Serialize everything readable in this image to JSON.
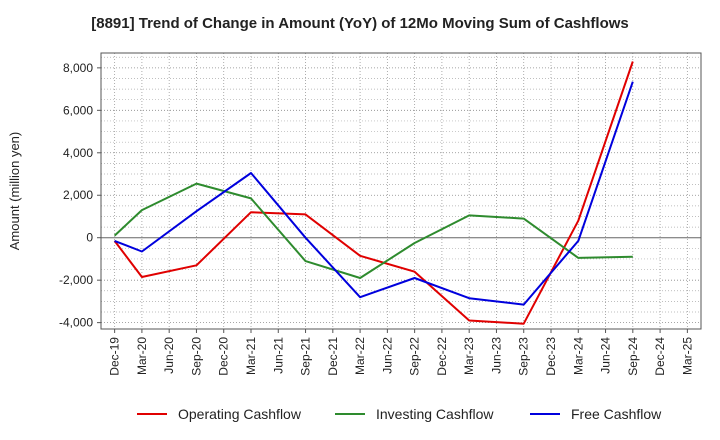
{
  "chart_data": {
    "type": "line",
    "title": "[8891]  Trend of Change in Amount (YoY) of 12Mo Moving Sum of Cashflows",
    "xlabel": "",
    "ylabel": "Amount (million yen)",
    "ylim": [
      -4300,
      8700
    ],
    "yticks": [
      -4000,
      -2000,
      0,
      2000,
      4000,
      6000,
      8000
    ],
    "ytick_labels": [
      "-4,000",
      "-2,000",
      "0",
      "2,000",
      "4,000",
      "6,000",
      "8,000"
    ],
    "grid": true,
    "legend_position": "bottom",
    "categories": [
      "Dec-19",
      "Mar-20",
      "Jun-20",
      "Sep-20",
      "Dec-20",
      "Mar-21",
      "Jun-21",
      "Sep-21",
      "Dec-21",
      "Mar-22",
      "Jun-22",
      "Sep-22",
      "Dec-22",
      "Mar-23",
      "Jun-23",
      "Sep-23",
      "Dec-23",
      "Mar-24",
      "Jun-24",
      "Sep-24",
      "Dec-24",
      "Mar-25"
    ],
    "series": [
      {
        "name": "Operating Cashflow",
        "color": "#e00000",
        "values": [
          -150,
          -1850,
          null,
          -1300,
          null,
          1200,
          null,
          1100,
          null,
          -850,
          null,
          -1600,
          null,
          -3900,
          null,
          -4050,
          null,
          800,
          null,
          8300,
          null,
          null
        ]
      },
      {
        "name": "Investing Cashflow",
        "color": "#2e8b2e",
        "values": [
          100,
          1300,
          null,
          2550,
          null,
          1850,
          null,
          -1100,
          null,
          -1900,
          null,
          -250,
          null,
          1050,
          null,
          900,
          null,
          -950,
          null,
          -900,
          null,
          null
        ]
      },
      {
        "name": "Free Cashflow",
        "color": "#0000dd",
        "values": [
          -150,
          -650,
          null,
          1250,
          null,
          3050,
          null,
          0,
          null,
          -2800,
          null,
          -1900,
          null,
          -2850,
          null,
          -3150,
          null,
          -150,
          null,
          7350,
          null,
          null
        ]
      }
    ]
  }
}
